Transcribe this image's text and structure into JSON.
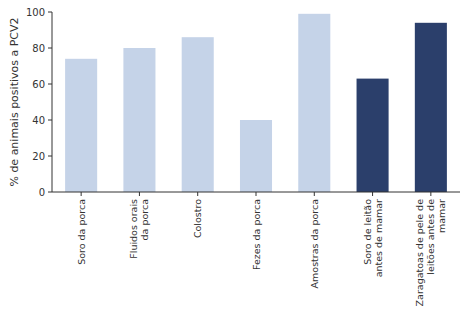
{
  "chart_data": {
    "type": "bar",
    "ylabel": "% de animais positivos a PCV2",
    "categories": [
      "Soro da porca",
      "Fluidos orais\nda porca",
      "Colostro",
      "Fezes da porca",
      "Amostras da porca",
      "Soro de leitão\nantes de mamar",
      "Zaragatoas de pele de\nleitões antes de\nmamar"
    ],
    "values": [
      74,
      80,
      86,
      40,
      99,
      63,
      94
    ],
    "colors": [
      "#c5d3e8",
      "#c5d3e8",
      "#c5d3e8",
      "#c5d3e8",
      "#c5d3e8",
      "#2b3f6b",
      "#2b3f6b"
    ],
    "ylim": [
      0,
      100
    ],
    "yticks": [
      0,
      20,
      40,
      60,
      80,
      100
    ],
    "grid": false
  }
}
